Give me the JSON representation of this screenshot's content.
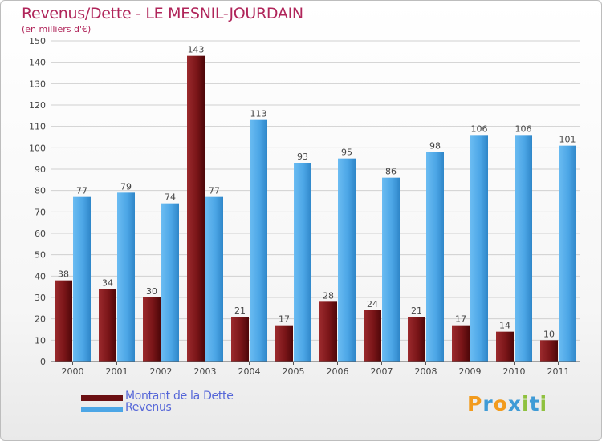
{
  "title": "Revenus/Dette - LE MESNIL-JOURDAIN",
  "subtitle": "(en milliers d'€)",
  "colors": {
    "debt": "#7a1518",
    "revenue": "#4ca6e6",
    "title": "#b0255a",
    "legend_text": "#5566d8"
  },
  "legend": [
    {
      "label": "Montant de la Dette",
      "color": "#6b0f12"
    },
    {
      "label": "Revenus",
      "color": "#4ca6e6"
    }
  ],
  "logo": {
    "letters": [
      "P",
      "r",
      "o",
      "x",
      "i",
      "t",
      "i"
    ],
    "colors": [
      "#f29b1d",
      "#3f9bd6",
      "#f29b1d",
      "#3f9bd6",
      "#8fc13e",
      "#3f9bd6",
      "#8fc13e"
    ]
  },
  "chart_data": {
    "type": "bar",
    "categories": [
      "2000",
      "2001",
      "2002",
      "2003",
      "2004",
      "2005",
      "2006",
      "2007",
      "2008",
      "2009",
      "2010",
      "2011"
    ],
    "series": [
      {
        "name": "Montant de la Dette",
        "values": [
          38,
          34,
          30,
          143,
          21,
          17,
          28,
          24,
          21,
          17,
          14,
          10
        ]
      },
      {
        "name": "Revenus",
        "values": [
          77,
          79,
          74,
          77,
          113,
          93,
          95,
          86,
          98,
          106,
          106,
          101
        ]
      }
    ],
    "yticks": [
      0,
      10,
      20,
      30,
      40,
      50,
      60,
      70,
      80,
      90,
      100,
      110,
      120,
      130,
      140,
      150
    ],
    "ylim": [
      0,
      150
    ],
    "grid": true,
    "legend_position": "bottom-left"
  }
}
